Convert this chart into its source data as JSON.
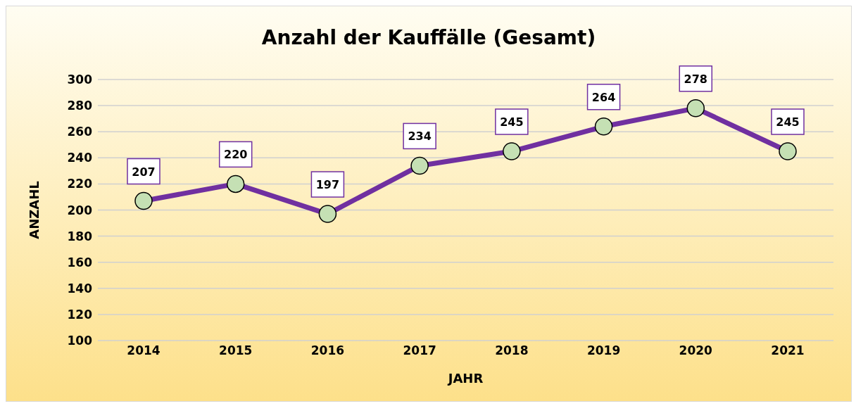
{
  "chart_data": {
    "type": "line",
    "title": "Anzahl der Kauffälle (Gesamt)",
    "xlabel": "JAHR",
    "ylabel": "ANZAHL",
    "categories": [
      "2014",
      "2015",
      "2016",
      "2017",
      "2018",
      "2019",
      "2020",
      "2021"
    ],
    "series": [
      {
        "color": "#7030a0",
        "values": [
          207,
          220,
          197,
          234,
          245,
          264,
          278,
          245
        ]
      }
    ],
    "ylim": [
      100,
      300
    ],
    "yticks": [
      100,
      120,
      140,
      160,
      180,
      200,
      220,
      240,
      260,
      280,
      300
    ],
    "grid": "y",
    "legend": false,
    "marker": "circle",
    "line_style": "solid",
    "data_labels": true
  }
}
